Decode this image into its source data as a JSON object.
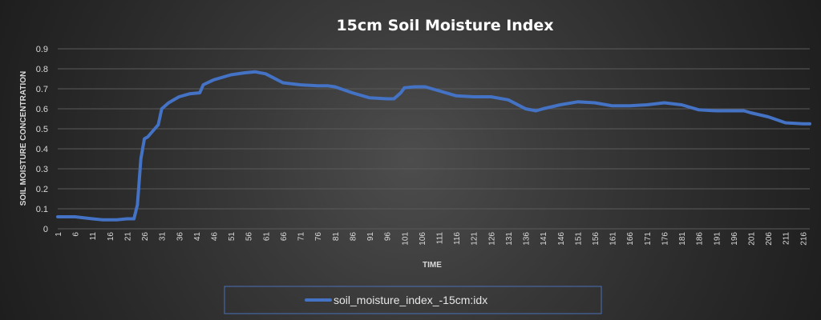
{
  "chart_data": {
    "type": "line",
    "title": "15cm Soil Moisture Index",
    "xlabel": "TIME",
    "ylabel": "SOIL MOISTURE CONCENTRATION",
    "ylim": [
      0,
      0.9
    ],
    "yticks": [
      "0",
      "0.1",
      "0.2",
      "0.3",
      "0.4",
      "0.5",
      "0.6",
      "0.7",
      "0.8",
      "0.9"
    ],
    "xlim": [
      1,
      218
    ],
    "xticks": [
      1,
      6,
      11,
      16,
      21,
      26,
      31,
      36,
      41,
      46,
      51,
      56,
      61,
      66,
      71,
      76,
      81,
      86,
      91,
      96,
      101,
      106,
      111,
      116,
      121,
      126,
      131,
      136,
      141,
      146,
      151,
      156,
      161,
      166,
      171,
      176,
      181,
      186,
      191,
      196,
      201,
      206,
      211,
      216
    ],
    "grid": true,
    "legend": "bottom",
    "series": [
      {
        "name": "soil_moisture_index_-15cm:idx",
        "color": "#4472c4",
        "x": [
          1,
          6,
          11,
          14,
          18,
          21,
          23,
          24,
          25,
          26,
          27,
          28,
          29,
          30,
          31,
          33,
          36,
          39,
          42,
          43,
          46,
          51,
          55,
          58,
          61,
          66,
          71,
          76,
          79,
          81,
          86,
          91,
          96,
          98,
          100,
          101,
          104,
          107,
          111,
          116,
          121,
          126,
          131,
          136,
          139,
          141,
          146,
          151,
          156,
          161,
          166,
          171,
          176,
          181,
          186,
          191,
          196,
          199,
          201,
          206,
          211,
          216,
          218
        ],
        "y": [
          0.06,
          0.06,
          0.05,
          0.045,
          0.045,
          0.05,
          0.05,
          0.12,
          0.35,
          0.45,
          0.46,
          0.48,
          0.5,
          0.52,
          0.6,
          0.63,
          0.66,
          0.675,
          0.68,
          0.72,
          0.745,
          0.77,
          0.78,
          0.785,
          0.775,
          0.73,
          0.72,
          0.715,
          0.715,
          0.71,
          0.68,
          0.655,
          0.65,
          0.65,
          0.68,
          0.705,
          0.71,
          0.71,
          0.69,
          0.665,
          0.66,
          0.66,
          0.645,
          0.6,
          0.59,
          0.6,
          0.62,
          0.635,
          0.63,
          0.615,
          0.615,
          0.62,
          0.63,
          0.62,
          0.595,
          0.59,
          0.59,
          0.59,
          0.58,
          0.56,
          0.53,
          0.525,
          0.525
        ]
      }
    ]
  }
}
